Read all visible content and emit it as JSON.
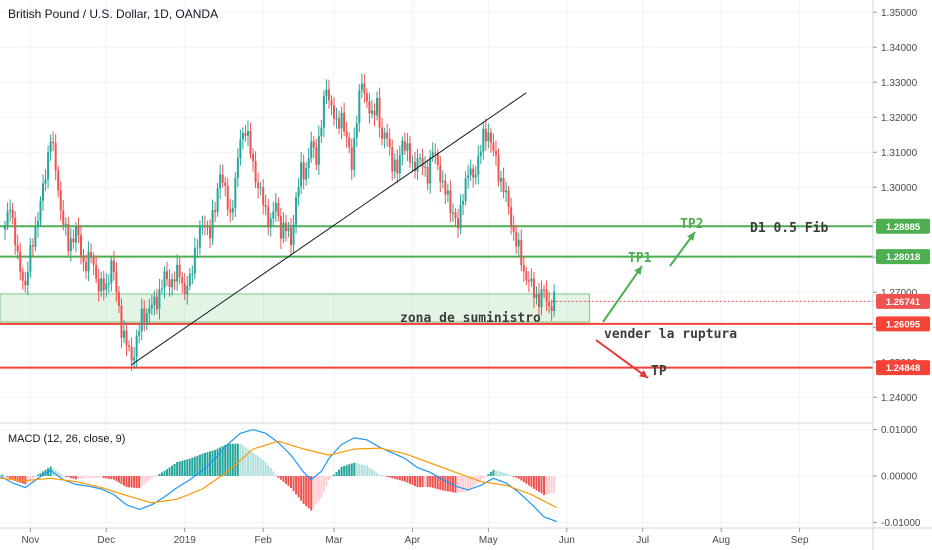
{
  "chart_data": {
    "type": "candlestick",
    "title": "British Pound / U.S. Dollar, 1D, OANDA",
    "price_axis": {
      "range": [
        1.2335,
        1.3535
      ],
      "ticks": [
        "1.24000",
        "1.25000",
        "1.26000",
        "1.27000",
        "1.28000",
        "1.29000",
        "1.30000",
        "1.31000",
        "1.32000",
        "1.33000",
        "1.34000",
        "1.35000"
      ]
    },
    "x_axis": {
      "labels": [
        {
          "text": "Nov",
          "day": 2
        },
        {
          "text": "Dec",
          "day": 32
        },
        {
          "text": "2019",
          "day": 63
        },
        {
          "text": "Feb",
          "day": 94
        },
        {
          "text": "Mar",
          "day": 122
        },
        {
          "text": "Apr",
          "day": 153
        },
        {
          "text": "May",
          "day": 183
        },
        {
          "text": "Jun",
          "day": 214
        },
        {
          "text": "Jul",
          "day": 244
        },
        {
          "text": "Aug",
          "day": 275
        },
        {
          "text": "Sep",
          "day": 306
        }
      ],
      "day_range": [
        -10,
        335
      ]
    },
    "ohlc_key_closes": [
      [
        -8,
        1.288
      ],
      [
        -6,
        1.296
      ],
      [
        -3,
        1.279
      ],
      [
        0,
        1.272
      ],
      [
        3,
        1.285
      ],
      [
        6,
        1.295
      ],
      [
        8,
        1.304
      ],
      [
        10,
        1.315
      ],
      [
        12,
        1.305
      ],
      [
        14,
        1.294
      ],
      [
        17,
        1.283
      ],
      [
        20,
        1.288
      ],
      [
        23,
        1.278
      ],
      [
        26,
        1.28
      ],
      [
        29,
        1.272
      ],
      [
        32,
        1.271
      ],
      [
        34,
        1.279
      ],
      [
        36,
        1.27
      ],
      [
        38,
        1.26
      ],
      [
        40,
        1.255
      ],
      [
        42,
        1.251
      ],
      [
        44,
        1.256
      ],
      [
        46,
        1.263
      ],
      [
        49,
        1.265
      ],
      [
        52,
        1.268
      ],
      [
        55,
        1.274
      ],
      [
        58,
        1.273
      ],
      [
        61,
        1.276
      ],
      [
        63,
        1.27
      ],
      [
        65,
        1.273
      ],
      [
        67,
        1.282
      ],
      [
        69,
        1.287
      ],
      [
        71,
        1.29
      ],
      [
        73,
        1.287
      ],
      [
        75,
        1.294
      ],
      [
        77,
        1.305
      ],
      [
        79,
        1.298
      ],
      [
        81,
        1.292
      ],
      [
        83,
        1.301
      ],
      [
        85,
        1.314
      ],
      [
        87,
        1.317
      ],
      [
        89,
        1.31
      ],
      [
        91,
        1.303
      ],
      [
        93,
        1.298
      ],
      [
        95,
        1.293
      ],
      [
        97,
        1.29
      ],
      [
        99,
        1.295
      ],
      [
        101,
        1.288
      ],
      [
        103,
        1.288
      ],
      [
        105,
        1.285
      ],
      [
        107,
        1.296
      ],
      [
        109,
        1.305
      ],
      [
        111,
        1.305
      ],
      [
        113,
        1.312
      ],
      [
        115,
        1.309
      ],
      [
        117,
        1.318
      ],
      [
        119,
        1.329
      ],
      [
        121,
        1.323
      ],
      [
        123,
        1.317
      ],
      [
        125,
        1.321
      ],
      [
        127,
        1.313
      ],
      [
        129,
        1.307
      ],
      [
        131,
        1.32
      ],
      [
        133,
        1.33
      ],
      [
        135,
        1.325
      ],
      [
        137,
        1.319
      ],
      [
        139,
        1.325
      ],
      [
        141,
        1.313
      ],
      [
        143,
        1.315
      ],
      [
        145,
        1.307
      ],
      [
        147,
        1.304
      ],
      [
        149,
        1.314
      ],
      [
        151,
        1.31
      ],
      [
        153,
        1.306
      ],
      [
        155,
        1.308
      ],
      [
        157,
        1.306
      ],
      [
        159,
        1.304
      ],
      [
        161,
        1.31
      ],
      [
        163,
        1.307
      ],
      [
        165,
        1.3
      ],
      [
        167,
        1.297
      ],
      [
        169,
        1.293
      ],
      [
        171,
        1.288
      ],
      [
        173,
        1.299
      ],
      [
        175,
        1.304
      ],
      [
        177,
        1.303
      ],
      [
        179,
        1.308
      ],
      [
        181,
        1.314
      ],
      [
        183,
        1.316
      ],
      [
        185,
        1.31
      ],
      [
        187,
        1.304
      ],
      [
        189,
        1.3
      ],
      [
        191,
        1.294
      ],
      [
        193,
        1.287
      ],
      [
        195,
        1.282
      ],
      [
        197,
        1.276
      ],
      [
        199,
        1.273
      ],
      [
        201,
        1.27
      ],
      [
        203,
        1.268
      ],
      [
        205,
        1.27
      ],
      [
        207,
        1.266
      ],
      [
        209,
        1.2674
      ]
    ],
    "horizontal_levels": [
      {
        "value": 1.28885,
        "label": "1.28885",
        "color": "#4caf50"
      },
      {
        "value": 1.28018,
        "label": "1.28018",
        "color": "#4caf50"
      },
      {
        "value": 1.26741,
        "label": "1.26741",
        "color": "#ef5350",
        "style": "dotted"
      },
      {
        "value": 1.26095,
        "label": "1.26095",
        "color": "#f44336"
      },
      {
        "value": 1.24848,
        "label": "1.24848",
        "color": "#f44336"
      }
    ],
    "supply_zone": {
      "top": 1.2695,
      "bottom": 1.2615,
      "from_day": -10,
      "to_day": 223
    },
    "trendline": {
      "from": [
        42,
        1.2493
      ],
      "to": [
        198,
        1.327
      ]
    },
    "annotations": {
      "tp2": "TP2",
      "d1_fib": "D1 0.5 Fib",
      "tp1": "TP1",
      "zona": "zona de suministro",
      "vender": "vender la ruptura",
      "tp": "TP"
    },
    "macd": {
      "title": "MACD (12, 26, close, 9)",
      "range": [
        -0.0112,
        0.0112
      ],
      "ticks": [
        "0.01000",
        "0.00000",
        "-0.01000"
      ],
      "macd_line": [
        [
          -10,
          0.0
        ],
        [
          -5,
          -0.0015
        ],
        [
          0,
          -0.0025
        ],
        [
          5,
          -0.0005
        ],
        [
          10,
          0.0012
        ],
        [
          15,
          -0.0008
        ],
        [
          20,
          -0.0018
        ],
        [
          25,
          -0.0022
        ],
        [
          30,
          -0.0028
        ],
        [
          35,
          -0.004
        ],
        [
          40,
          -0.0062
        ],
        [
          45,
          -0.0072
        ],
        [
          50,
          -0.0062
        ],
        [
          55,
          -0.0045
        ],
        [
          60,
          -0.0025
        ],
        [
          65,
          -0.0008
        ],
        [
          70,
          0.0012
        ],
        [
          75,
          0.0038
        ],
        [
          80,
          0.0068
        ],
        [
          85,
          0.0092
        ],
        [
          90,
          0.01
        ],
        [
          95,
          0.0092
        ],
        [
          100,
          0.0072
        ],
        [
          105,
          0.0045
        ],
        [
          110,
          0.0008
        ],
        [
          113,
          -0.0008
        ],
        [
          117,
          0.001
        ],
        [
          120,
          0.0038
        ],
        [
          125,
          0.0068
        ],
        [
          130,
          0.0082
        ],
        [
          135,
          0.0078
        ],
        [
          140,
          0.0062
        ],
        [
          145,
          0.005
        ],
        [
          150,
          0.0038
        ],
        [
          155,
          0.0018
        ],
        [
          160,
          0.0008
        ],
        [
          165,
          -0.0008
        ],
        [
          170,
          -0.0022
        ],
        [
          175,
          -0.003
        ],
        [
          180,
          -0.002
        ],
        [
          185,
          -0.0005
        ],
        [
          190,
          -0.0015
        ],
        [
          195,
          -0.0035
        ],
        [
          200,
          -0.006
        ],
        [
          205,
          -0.0088
        ],
        [
          210,
          -0.0098
        ]
      ],
      "signal_line": [
        [
          -10,
          -0.0005
        ],
        [
          0,
          -0.001
        ],
        [
          10,
          -0.0005
        ],
        [
          20,
          -0.0012
        ],
        [
          30,
          -0.0025
        ],
        [
          40,
          -0.0042
        ],
        [
          50,
          -0.0058
        ],
        [
          60,
          -0.005
        ],
        [
          70,
          -0.0028
        ],
        [
          80,
          0.001
        ],
        [
          90,
          0.0058
        ],
        [
          100,
          0.0075
        ],
        [
          110,
          0.0058
        ],
        [
          120,
          0.0045
        ],
        [
          130,
          0.0058
        ],
        [
          140,
          0.006
        ],
        [
          150,
          0.0048
        ],
        [
          160,
          0.0028
        ],
        [
          170,
          0.0008
        ],
        [
          180,
          -0.0012
        ],
        [
          190,
          -0.002
        ],
        [
          200,
          -0.004
        ],
        [
          210,
          -0.0068
        ]
      ]
    }
  }
}
